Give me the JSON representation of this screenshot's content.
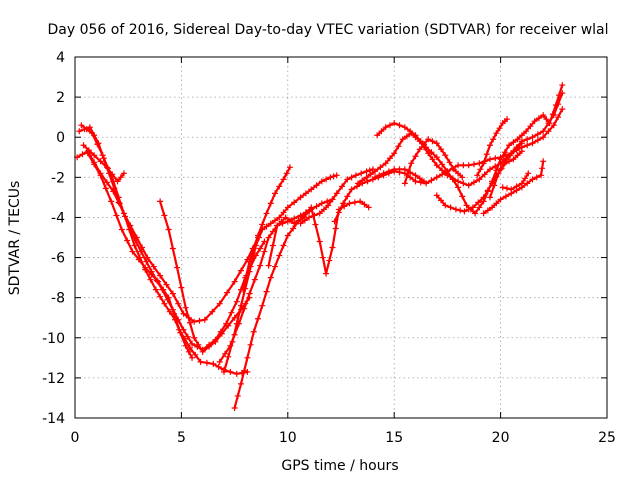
{
  "chart_data": {
    "type": "scatter",
    "title": "Day 056 of 2016, Sidereal Day-to-day VTEC variation (SDTVAR) for receiver wlal",
    "xlabel": "GPS time / hours",
    "ylabel": "SDTVAR / TECUs",
    "xlim": [
      0,
      25
    ],
    "ylim": [
      -14,
      4
    ],
    "xticks": [
      0,
      5,
      10,
      15,
      20,
      25
    ],
    "yticks": [
      -14,
      -12,
      -10,
      -8,
      -6,
      -4,
      -2,
      0,
      2,
      4
    ],
    "grid": true,
    "marker": "plus",
    "color": "#ff0000",
    "series": [
      {
        "points": [
          [
            0.1,
            -1.0
          ],
          [
            0.6,
            -0.7
          ],
          [
            1.2,
            -1.8
          ],
          [
            1.8,
            -2.7
          ],
          [
            2.3,
            -3.8
          ],
          [
            2.9,
            -5.0
          ],
          [
            3.4,
            -6.0
          ],
          [
            4.0,
            -6.9
          ],
          [
            4.6,
            -7.8
          ],
          [
            5.1,
            -8.8
          ],
          [
            5.6,
            -9.2
          ],
          [
            6.1,
            -9.1
          ],
          [
            6.8,
            -8.3
          ],
          [
            7.5,
            -7.2
          ],
          [
            8.1,
            -6.1
          ],
          [
            8.6,
            -5.0
          ]
        ]
      },
      {
        "points": [
          [
            0.6,
            -0.8
          ],
          [
            1.2,
            -1.9
          ],
          [
            1.7,
            -3.2
          ],
          [
            2.2,
            -4.6
          ],
          [
            2.7,
            -5.7
          ],
          [
            3.3,
            -6.5
          ],
          [
            3.9,
            -7.2
          ],
          [
            4.4,
            -8.0
          ],
          [
            4.9,
            -9.6
          ],
          [
            5.4,
            -10.5
          ],
          [
            5.9,
            -11.2
          ],
          [
            6.5,
            -11.3
          ],
          [
            7.0,
            -11.6
          ],
          [
            7.6,
            -11.8
          ],
          [
            8.1,
            -11.7
          ]
        ]
      },
      {
        "points": [
          [
            0.2,
            0.3
          ],
          [
            0.7,
            0.5
          ],
          [
            1.1,
            -0.3
          ],
          [
            1.6,
            -1.8
          ],
          [
            2.1,
            -3.3
          ],
          [
            2.6,
            -4.6
          ],
          [
            3.1,
            -5.7
          ],
          [
            3.6,
            -6.7
          ],
          [
            4.1,
            -7.6
          ],
          [
            4.6,
            -8.6
          ],
          [
            5.1,
            -9.6
          ],
          [
            5.5,
            -10.3
          ],
          [
            6.0,
            -10.6
          ],
          [
            6.6,
            -10.1
          ],
          [
            7.1,
            -9.3
          ],
          [
            7.6,
            -8.2
          ],
          [
            8.0,
            -7.0
          ],
          [
            8.5,
            -5.9
          ],
          [
            8.9,
            -5.2
          ]
        ]
      },
      {
        "points": [
          [
            0.3,
            0.6
          ],
          [
            0.8,
            0.2
          ],
          [
            1.3,
            -0.9
          ],
          [
            1.8,
            -2.2
          ],
          [
            2.3,
            -3.8
          ],
          [
            2.8,
            -5.4
          ],
          [
            3.3,
            -6.6
          ],
          [
            3.8,
            -7.6
          ],
          [
            4.2,
            -8.3
          ],
          [
            4.7,
            -9.1
          ],
          [
            5.2,
            -10.4
          ],
          [
            5.5,
            -11.0
          ]
        ]
      },
      {
        "points": [
          [
            0.4,
            -0.4
          ],
          [
            0.9,
            -0.9
          ],
          [
            1.5,
            -1.5
          ],
          [
            2.0,
            -2.2
          ],
          [
            2.3,
            -1.8
          ]
        ]
      },
      {
        "points": [
          [
            4.0,
            -3.2
          ],
          [
            4.4,
            -4.6
          ],
          [
            4.8,
            -6.5
          ],
          [
            5.2,
            -8.5
          ],
          [
            5.6,
            -10.0
          ],
          [
            6.0,
            -10.7
          ],
          [
            6.6,
            -10.2
          ],
          [
            7.2,
            -9.4
          ],
          [
            7.8,
            -8.6
          ],
          [
            8.2,
            -8.0
          ]
        ]
      },
      {
        "points": [
          [
            7.5,
            -13.5
          ],
          [
            7.8,
            -12.3
          ],
          [
            8.1,
            -11.0
          ],
          [
            8.4,
            -9.7
          ],
          [
            8.8,
            -8.4
          ],
          [
            9.2,
            -7.0
          ],
          [
            9.6,
            -5.9
          ],
          [
            10.0,
            -4.9
          ],
          [
            10.5,
            -4.2
          ],
          [
            11.0,
            -3.7
          ]
        ]
      },
      {
        "points": [
          [
            7.0,
            -11.7
          ],
          [
            7.4,
            -10.2
          ],
          [
            7.8,
            -8.4
          ],
          [
            8.2,
            -6.7
          ],
          [
            8.5,
            -5.4
          ],
          [
            8.8,
            -4.6
          ],
          [
            9.2,
            -4.3
          ],
          [
            9.6,
            -4.0
          ],
          [
            10.0,
            -3.5
          ],
          [
            10.6,
            -3.0
          ],
          [
            11.1,
            -2.6
          ],
          [
            11.6,
            -2.2
          ],
          [
            12.0,
            -2.0
          ],
          [
            12.3,
            -1.9
          ]
        ]
      },
      {
        "points": [
          [
            6.8,
            -11.2
          ],
          [
            7.3,
            -10.4
          ],
          [
            7.7,
            -9.3
          ],
          [
            8.2,
            -7.8
          ],
          [
            8.7,
            -6.4
          ],
          [
            9.1,
            -5.0
          ],
          [
            9.5,
            -4.4
          ],
          [
            10.0,
            -4.2
          ],
          [
            10.6,
            -3.9
          ],
          [
            11.1,
            -3.6
          ],
          [
            11.6,
            -3.3
          ],
          [
            12.1,
            -3.1
          ]
        ]
      },
      {
        "points": [
          [
            7.9,
            -7.6
          ],
          [
            8.2,
            -6.2
          ],
          [
            8.6,
            -4.9
          ],
          [
            9.0,
            -3.8
          ],
          [
            9.4,
            -2.8
          ],
          [
            9.8,
            -2.1
          ],
          [
            10.1,
            -1.5
          ]
        ]
      },
      {
        "points": [
          [
            9.1,
            -6.4
          ],
          [
            9.5,
            -4.4
          ],
          [
            9.9,
            -4.0
          ],
          [
            10.3,
            -4.3
          ],
          [
            10.7,
            -4.0
          ],
          [
            11.1,
            -3.5
          ],
          [
            11.5,
            -5.2
          ],
          [
            11.8,
            -6.8
          ],
          [
            12.1,
            -5.5
          ],
          [
            12.4,
            -3.6
          ],
          [
            12.9,
            -3.3
          ],
          [
            13.4,
            -3.2
          ],
          [
            13.8,
            -3.5
          ]
        ]
      },
      {
        "points": [
          [
            10.6,
            -4.3
          ],
          [
            11.0,
            -4.0
          ],
          [
            11.5,
            -3.8
          ],
          [
            11.9,
            -3.4
          ],
          [
            12.3,
            -2.8
          ],
          [
            12.8,
            -2.1
          ],
          [
            13.2,
            -1.9
          ],
          [
            13.7,
            -1.7
          ],
          [
            14.0,
            -1.6
          ]
        ]
      },
      {
        "points": [
          [
            12.2,
            -4.2
          ],
          [
            12.6,
            -3.3
          ],
          [
            13.0,
            -2.6
          ],
          [
            13.5,
            -2.3
          ],
          [
            14.0,
            -2.1
          ],
          [
            14.5,
            -1.9
          ],
          [
            15.0,
            -1.7
          ],
          [
            15.5,
            -1.8
          ],
          [
            16.0,
            -2.2
          ],
          [
            16.5,
            -2.3
          ],
          [
            17.0,
            -2.0
          ],
          [
            17.5,
            -1.7
          ],
          [
            18.0,
            -1.4
          ],
          [
            18.5,
            -1.4
          ],
          [
            19.0,
            -1.3
          ],
          [
            19.5,
            -1.1
          ],
          [
            20.0,
            -1.0
          ],
          [
            20.5,
            -0.8
          ],
          [
            21.0,
            -0.5
          ],
          [
            21.5,
            -0.3
          ],
          [
            22.0,
            0.0
          ],
          [
            22.5,
            0.6
          ],
          [
            22.9,
            1.4
          ]
        ]
      },
      {
        "points": [
          [
            13.3,
            -2.3
          ],
          [
            13.7,
            -2.0
          ],
          [
            14.1,
            -1.7
          ],
          [
            14.6,
            -1.3
          ],
          [
            15.0,
            -0.8
          ],
          [
            15.4,
            -0.1
          ],
          [
            15.8,
            0.2
          ],
          [
            16.2,
            -0.2
          ],
          [
            16.6,
            -0.8
          ],
          [
            17.0,
            -1.4
          ],
          [
            17.5,
            -1.9
          ],
          [
            18.0,
            -2.2
          ],
          [
            18.5,
            -2.4
          ],
          [
            19.0,
            -2.1
          ],
          [
            19.5,
            -1.6
          ],
          [
            20.0,
            -1.3
          ],
          [
            20.5,
            -0.8
          ],
          [
            21.0,
            -0.2
          ],
          [
            21.5,
            0.0
          ],
          [
            22.0,
            0.3
          ],
          [
            22.5,
            1.1
          ],
          [
            22.9,
            2.2
          ]
        ]
      },
      {
        "points": [
          [
            14.2,
            0.1
          ],
          [
            14.6,
            0.5
          ],
          [
            15.0,
            0.7
          ],
          [
            15.5,
            0.5
          ],
          [
            16.0,
            0.1
          ],
          [
            16.5,
            -0.5
          ],
          [
            17.0,
            -1.0
          ],
          [
            17.5,
            -1.7
          ],
          [
            18.0,
            -2.5
          ],
          [
            18.4,
            -3.4
          ],
          [
            18.8,
            -3.8
          ],
          [
            19.2,
            -3.2
          ],
          [
            19.6,
            -2.2
          ],
          [
            20.0,
            -1.1
          ],
          [
            20.4,
            -0.4
          ],
          [
            20.8,
            -0.1
          ],
          [
            21.2,
            0.3
          ],
          [
            21.6,
            0.8
          ],
          [
            22.0,
            1.1
          ],
          [
            22.3,
            0.7
          ],
          [
            22.6,
            1.6
          ],
          [
            22.9,
            2.6
          ]
        ]
      },
      {
        "points": [
          [
            15.5,
            -2.3
          ],
          [
            15.8,
            -1.3
          ],
          [
            16.2,
            -0.6
          ],
          [
            16.6,
            -0.1
          ],
          [
            17.0,
            -0.3
          ],
          [
            17.4,
            -0.9
          ],
          [
            17.8,
            -1.6
          ],
          [
            18.2,
            -2.0
          ]
        ]
      },
      {
        "points": [
          [
            14.1,
            -2.0
          ],
          [
            14.5,
            -1.8
          ],
          [
            15.0,
            -1.6
          ],
          [
            15.5,
            -1.6
          ],
          [
            16.0,
            -1.9
          ],
          [
            16.4,
            -2.2
          ]
        ]
      },
      {
        "points": [
          [
            17.0,
            -2.9
          ],
          [
            17.4,
            -3.4
          ],
          [
            17.9,
            -3.6
          ],
          [
            18.3,
            -3.7
          ],
          [
            18.7,
            -3.5
          ],
          [
            19.2,
            -3.0
          ],
          [
            19.6,
            -2.3
          ],
          [
            20.0,
            -1.6
          ],
          [
            20.3,
            -1.1
          ],
          [
            20.6,
            -0.7
          ],
          [
            21.0,
            -0.3
          ]
        ]
      },
      {
        "points": [
          [
            19.5,
            -3.0
          ],
          [
            19.9,
            -1.8
          ],
          [
            20.2,
            -1.3
          ],
          [
            20.6,
            -1.1
          ],
          [
            21.0,
            -0.7
          ]
        ]
      },
      {
        "points": [
          [
            18.9,
            -1.9
          ],
          [
            19.2,
            -1.3
          ],
          [
            19.5,
            -0.4
          ],
          [
            19.8,
            0.2
          ],
          [
            20.1,
            0.7
          ],
          [
            20.3,
            0.9
          ]
        ]
      },
      {
        "points": [
          [
            19.2,
            -3.8
          ],
          [
            19.6,
            -3.5
          ],
          [
            20.0,
            -3.1
          ],
          [
            20.5,
            -2.8
          ],
          [
            21.0,
            -2.5
          ],
          [
            21.5,
            -2.1
          ],
          [
            21.9,
            -1.9
          ],
          [
            22.0,
            -1.2
          ]
        ]
      },
      {
        "points": [
          [
            20.1,
            -2.5
          ],
          [
            20.5,
            -2.6
          ],
          [
            21.0,
            -2.3
          ],
          [
            21.3,
            -1.8
          ]
        ]
      }
    ]
  }
}
